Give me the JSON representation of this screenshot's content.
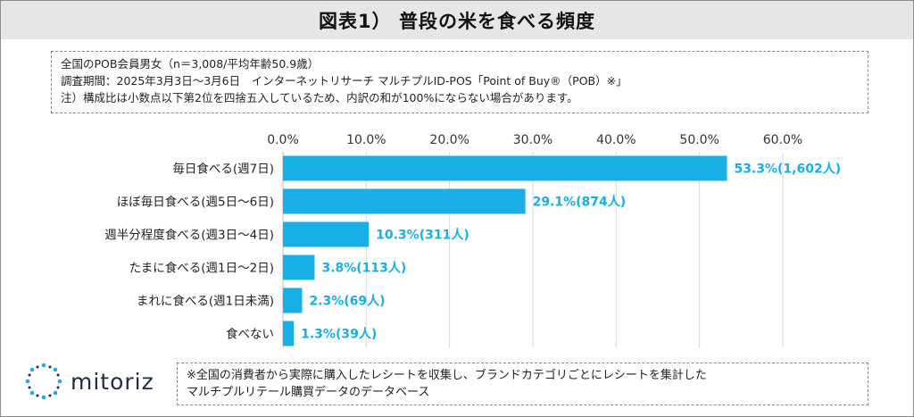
{
  "title": "図表1） 普段の米を食べる頻度",
  "notes": [
    "全国のPOB会員男女（n＝3,008/平均年齢50.9歳）",
    "調査期間：2025年3月3日～3月6日　インターネットリサーチ マルチプルID-POS「Point of Buy®（POB）※」",
    "注）構成比は小数点以下第2位を四捨五入しているため、内訳の和が100%にならない場合があります。"
  ],
  "footnote": [
    "※全国の消費者から実際に購入したレシートを収集し、ブランドカテゴリごとにレシートを集計した",
    "マルチプルリテール購買データのデータベース"
  ],
  "logo_text": "mitoriz",
  "colors": {
    "bar": "#18aee6",
    "label": "#18aee6",
    "title_bg": "#e6e6e6",
    "logo": "#1f2a44"
  },
  "chart_data": {
    "type": "bar",
    "orientation": "horizontal",
    "categories": [
      "毎日食べる(週7日)",
      "ほぼ毎日食べる(週5日～6日)",
      "週半分程度食べる(週3日～4日)",
      "たまに食べる(週1日～2日)",
      "まれに食べる(週1日未満)",
      "食べない"
    ],
    "values": [
      53.3,
      29.1,
      10.3,
      3.8,
      2.3,
      1.3
    ],
    "data_labels": [
      "53.3%(1,602人)",
      "29.1%(874人)",
      "10.3%(311人)",
      "3.8%(113人)",
      "2.3%(69人)",
      "1.3%(39人)"
    ],
    "xlim": [
      0,
      60
    ],
    "x_ticks": [
      "0.0%",
      "10.0%",
      "20.0%",
      "30.0%",
      "40.0%",
      "50.0%",
      "60.0%"
    ],
    "x_tick_values": [
      0,
      10,
      20,
      30,
      40,
      50,
      60
    ],
    "axis_position": "top",
    "grid": true,
    "legend": "none"
  }
}
